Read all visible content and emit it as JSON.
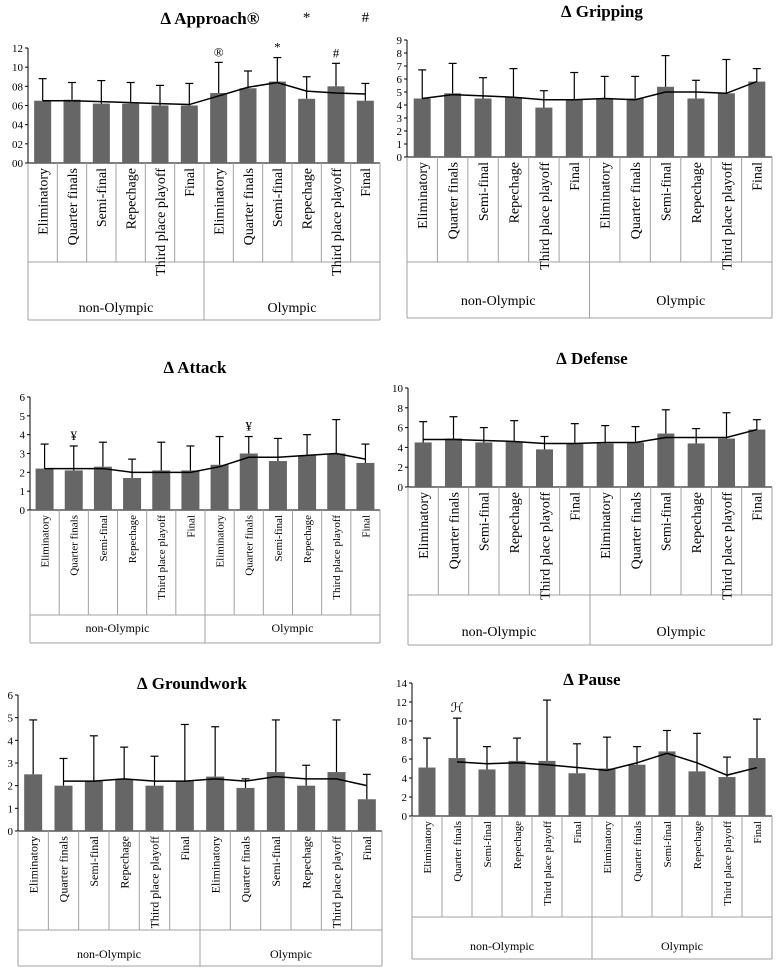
{
  "figure": {
    "groups": [
      "non-Olympic",
      "Olympic"
    ]
  },
  "chart_data": [
    {
      "type": "bar",
      "title": "∆ Approach®",
      "categories": [
        "Eliminatory",
        "Quarter finals",
        "Semi-final",
        "Repechage",
        "Third place playoff",
        "Final",
        "Eliminatory",
        "Quarter finals",
        "Semi-final",
        "Repechage",
        "Third place playoff",
        "Final"
      ],
      "groups": [
        "non-Olympic",
        "Olympic"
      ],
      "values": [
        6.5,
        6.6,
        6.2,
        6.2,
        6.0,
        6.0,
        7.3,
        7.8,
        8.5,
        6.7,
        8.0,
        6.5
      ],
      "errors": [
        2.3,
        1.8,
        2.4,
        2.2,
        2.1,
        2.3,
        3.2,
        1.8,
        2.5,
        2.3,
        2.4,
        1.8
      ],
      "trend": [
        6.5,
        6.5,
        6.4,
        6.3,
        6.2,
        6.1,
        7.0,
        7.9,
        8.4,
        7.5,
        7.3,
        7.2
      ],
      "ylim": [
        0,
        12
      ],
      "yticks": [
        "00",
        "02",
        "04",
        "06",
        "08",
        "10",
        "12"
      ],
      "annotations": [
        {
          "index": 6,
          "text": "®"
        },
        {
          "index": 8,
          "text": "*"
        },
        {
          "index": 10,
          "text": "#"
        }
      ],
      "title_marks": [
        {
          "index": 9,
          "text": "*"
        },
        {
          "index": 11,
          "text": "#"
        }
      ]
    },
    {
      "type": "bar",
      "title": "∆ Gripping",
      "categories": [
        "Eliminatory",
        "Quarter finals",
        "Semi-final",
        "Repechage",
        "Third place playoff",
        "Final",
        "Eliminatory",
        "Quarter finals",
        "Semi-final",
        "Repechage",
        "Third place playoff",
        "Final"
      ],
      "groups": [
        "non-Olympic",
        "Olympic"
      ],
      "values": [
        4.5,
        4.9,
        4.5,
        4.6,
        3.8,
        4.4,
        4.5,
        4.5,
        5.4,
        4.5,
        4.9,
        5.8
      ],
      "errors": [
        2.2,
        2.3,
        1.6,
        2.2,
        1.3,
        2.1,
        1.7,
        1.7,
        2.4,
        1.4,
        2.6,
        1.0
      ],
      "trend": [
        4.5,
        4.8,
        4.7,
        4.6,
        4.4,
        4.4,
        4.5,
        4.4,
        5.0,
        5.0,
        4.9,
        5.8
      ],
      "ylim": [
        0,
        9
      ],
      "yticks": [
        "0",
        "1",
        "2",
        "3",
        "4",
        "5",
        "6",
        "7",
        "8",
        "9"
      ],
      "annotations": [],
      "title_marks": []
    },
    {
      "type": "bar",
      "title": "∆ Attack",
      "categories": [
        "Eliminatory",
        "Quarter finals",
        "Semi-final",
        "Repechage",
        "Third place playoff",
        "Final",
        "Eliminatory",
        "Quarter finals",
        "Semi-final",
        "Repechage",
        "Third place playoff",
        "Final"
      ],
      "groups": [
        "non-Olympic",
        "Olympic"
      ],
      "values": [
        2.2,
        2.1,
        2.3,
        1.7,
        2.1,
        2.1,
        2.4,
        3.0,
        2.6,
        2.9,
        3.0,
        2.5
      ],
      "errors": [
        1.3,
        1.3,
        1.3,
        1.0,
        1.5,
        1.3,
        1.5,
        0.9,
        1.2,
        1.1,
        1.8,
        1.0
      ],
      "trend": [
        2.2,
        2.2,
        2.2,
        2.0,
        2.0,
        2.0,
        2.3,
        2.8,
        2.8,
        2.9,
        3.0,
        2.7
      ],
      "ylim": [
        0,
        6
      ],
      "yticks": [
        "0",
        "1",
        "2",
        "3",
        "4",
        "5",
        "6"
      ],
      "annotations": [
        {
          "index": 1,
          "text": "¥"
        },
        {
          "index": 7,
          "text": "¥"
        }
      ],
      "title_marks": []
    },
    {
      "type": "bar",
      "title": "∆ Defense",
      "categories": [
        "Eliminatory",
        "Quarter finals",
        "Semi-final",
        "Repechage",
        "Third place playoff",
        "Final",
        "Eliminatory",
        "Quarter finals",
        "Semi-final",
        "Repechage",
        "Third place playoff",
        "Final"
      ],
      "groups": [
        "non-Olympic",
        "Olympic"
      ],
      "values": [
        4.5,
        4.9,
        4.5,
        4.6,
        3.8,
        4.4,
        4.4,
        4.5,
        5.4,
        4.4,
        4.9,
        5.8
      ],
      "errors": [
        2.1,
        2.2,
        1.5,
        2.1,
        1.3,
        2.0,
        1.8,
        1.6,
        2.4,
        1.5,
        2.6,
        1.0
      ],
      "trend": [
        4.8,
        4.8,
        4.7,
        4.6,
        4.4,
        4.4,
        4.5,
        4.5,
        5.0,
        5.0,
        5.0,
        5.8
      ],
      "ylim": [
        0,
        10
      ],
      "yticks": [
        "0",
        "2",
        "4",
        "6",
        "8",
        "10"
      ],
      "annotations": [],
      "title_marks": []
    },
    {
      "type": "bar",
      "title": "∆ Groundwork",
      "categories": [
        "Eliminatory",
        "Quarter finals",
        "Semi-final",
        "Repechage",
        "Third place playoff",
        "Final",
        "Eliminatory",
        "Quarter finals",
        "Semi-final",
        "Repechage",
        "Third place playoff",
        "Final"
      ],
      "groups": [
        "non-Olympic",
        "Olympic"
      ],
      "values": [
        2.5,
        2.0,
        2.2,
        2.3,
        2.0,
        2.2,
        2.4,
        1.9,
        2.6,
        2.0,
        2.6,
        1.4
      ],
      "errors": [
        2.4,
        1.2,
        2.0,
        1.4,
        1.3,
        2.5,
        2.2,
        0.4,
        2.3,
        0.9,
        2.3,
        1.1
      ],
      "trend": [
        null,
        2.2,
        2.2,
        2.3,
        2.2,
        2.2,
        2.3,
        2.2,
        2.4,
        2.3,
        2.3,
        2.0
      ],
      "ylim": [
        0,
        6
      ],
      "yticks": [
        "0",
        "1",
        "2",
        "3",
        "4",
        "5",
        "6"
      ],
      "annotations": [],
      "title_marks": []
    },
    {
      "type": "bar",
      "title": "∆ Pause",
      "categories": [
        "Eliminatory",
        "Quarter finals",
        "Semi-final",
        "Repechage",
        "Third place playoff",
        "Final",
        "Eliminatory",
        "Quarter finals",
        "Semi-final",
        "Repechage",
        "Third place playoff",
        "Final"
      ],
      "groups": [
        "non-Olympic",
        "Olympic"
      ],
      "values": [
        5.1,
        6.1,
        4.9,
        5.8,
        5.8,
        4.5,
        5.0,
        5.4,
        6.8,
        4.7,
        4.1,
        6.1
      ],
      "errors": [
        3.1,
        4.2,
        2.4,
        2.4,
        6.4,
        3.1,
        3.3,
        1.9,
        2.2,
        4.0,
        2.1,
        4.1
      ],
      "trend": [
        null,
        5.7,
        5.5,
        5.6,
        5.4,
        5.1,
        4.8,
        5.6,
        6.6,
        5.6,
        4.3,
        5.1
      ],
      "ylim": [
        0,
        14
      ],
      "yticks": [
        "0",
        "2",
        "4",
        "6",
        "8",
        "10",
        "12",
        "14"
      ],
      "annotations": [
        {
          "index": 1,
          "text": "ℋ"
        }
      ],
      "title_marks": []
    }
  ]
}
